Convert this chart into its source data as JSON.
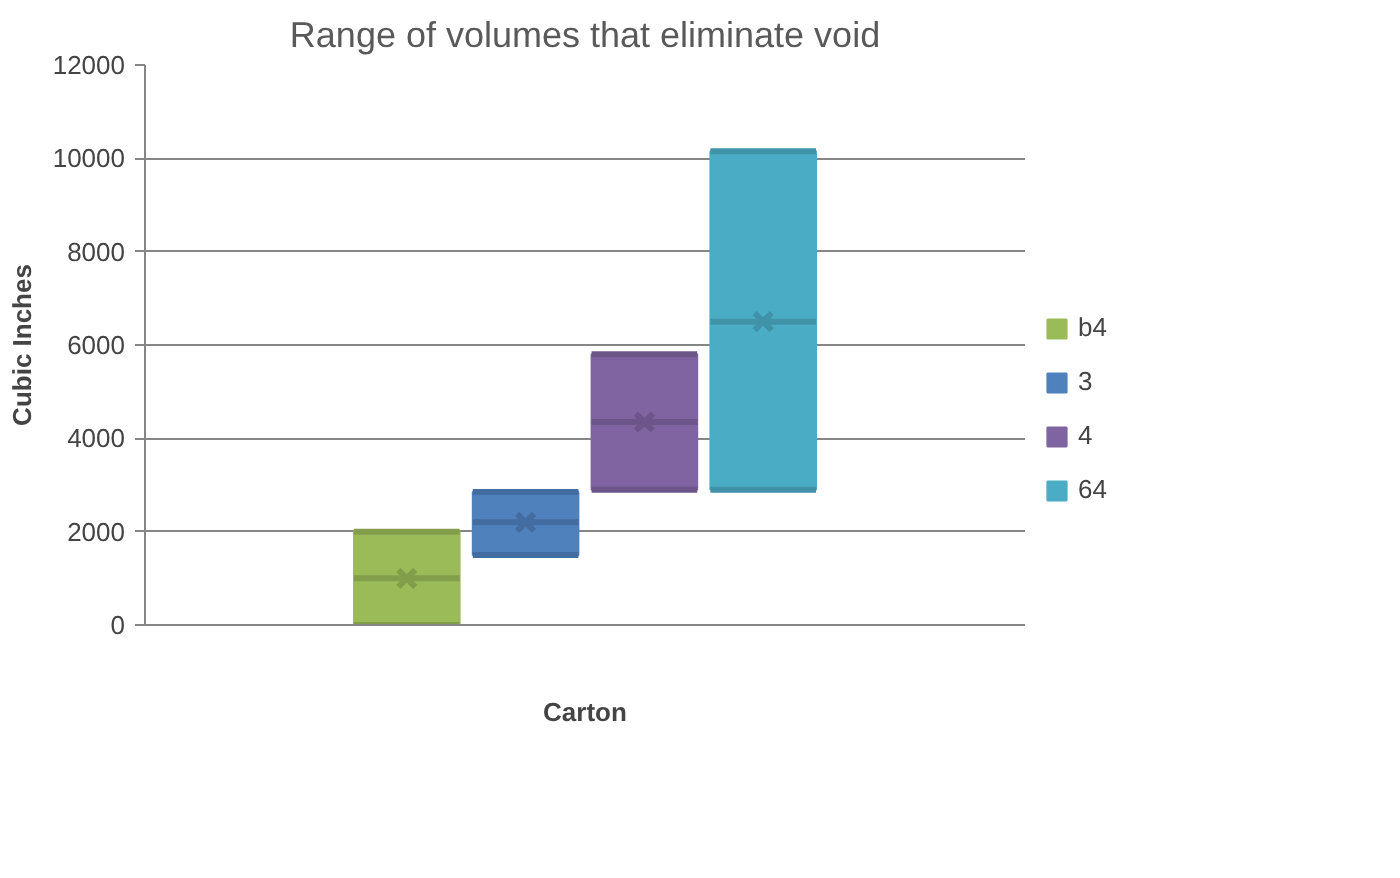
{
  "chart_data": {
    "type": "box",
    "title": "Range of volumes that eliminate void",
    "xlabel": "Carton",
    "ylabel": "Cubic Inches",
    "categories": [
      null
    ],
    "series": [
      {
        "name": "b4",
        "color": "#9bbb59",
        "boxes": [
          {
            "low": 0,
            "q1": 0,
            "median": 1000,
            "q3": 2000,
            "high": 2000,
            "mean": 1000
          }
        ]
      },
      {
        "name": "3",
        "color": "#4f81bd",
        "boxes": [
          {
            "low": 1500,
            "q1": 1500,
            "median": 2200,
            "q3": 2850,
            "high": 2850,
            "mean": 2200
          }
        ]
      },
      {
        "name": "4",
        "color": "#8064a2",
        "boxes": [
          {
            "low": 2900,
            "q1": 2900,
            "median": 4350,
            "q3": 5800,
            "high": 5800,
            "mean": 4350
          }
        ]
      },
      {
        "name": "64",
        "color": "#4bacc6",
        "boxes": [
          {
            "low": 2900,
            "q1": 2900,
            "median": 6500,
            "q3": 10150,
            "high": 10150,
            "mean": 6500
          }
        ]
      }
    ],
    "ylim": [
      0,
      12000
    ],
    "yticks": [
      0,
      2000,
      4000,
      6000,
      8000,
      10000,
      12000
    ],
    "grid": "y",
    "legend": "right"
  }
}
